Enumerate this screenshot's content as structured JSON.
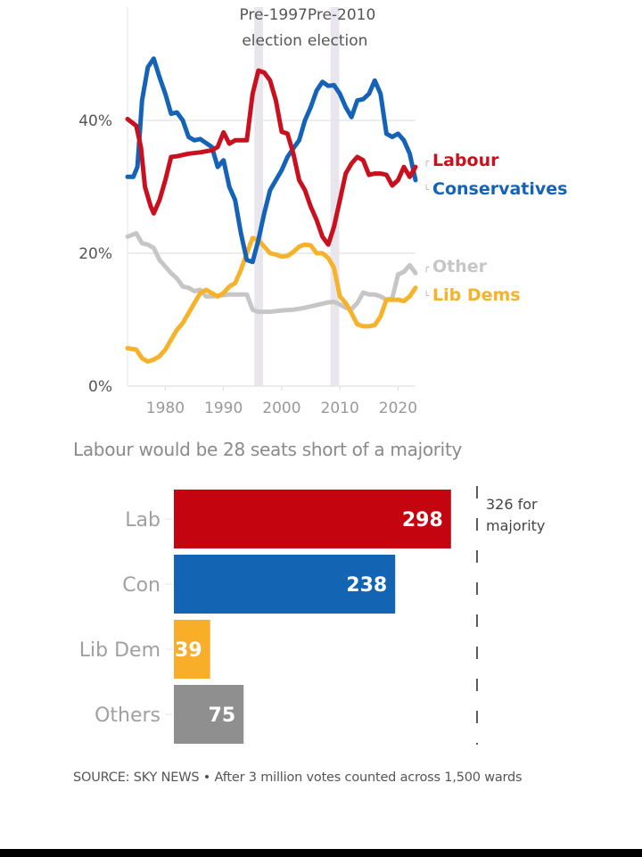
{
  "chart_data": [
    {
      "type": "line",
      "title": "",
      "xlabel": "",
      "ylabel": "",
      "xlim": [
        1973.5,
        2023
      ],
      "ylim": [
        0,
        50
      ],
      "x_ticks": [
        1980,
        1990,
        2000,
        2010,
        2020
      ],
      "x_tick_labels": [
        "1980",
        "1990",
        "2000",
        "2010",
        "2020"
      ],
      "y_ticks": [
        0,
        20,
        40
      ],
      "y_tick_labels": [
        "0%",
        "20%",
        "40%"
      ],
      "grid": true,
      "legend": "right",
      "annotations": [
        {
          "label_line1": "Pre-1997",
          "label_line2": "election",
          "x_start": 1995.3,
          "x_end": 1996.8
        },
        {
          "label_line1": "Pre-2010",
          "label_line2": "election",
          "x_start": 2008.4,
          "x_end": 2009.9
        }
      ],
      "series": [
        {
          "name": "Labour",
          "color": "#c8101e",
          "x": [
            1973.5,
            1975,
            1975.8,
            1976.5,
            1977.5,
            1978,
            1979,
            1980,
            1981,
            1982,
            1984,
            1986,
            1988,
            1989,
            1990,
            1991,
            1992,
            1994,
            1995,
            1996,
            1997,
            1998,
            1999,
            2000,
            2001,
            2002,
            2003,
            2004,
            2005,
            2006,
            2007,
            2008,
            2009,
            2010,
            2011,
            2012,
            2013,
            2014,
            2015,
            2016,
            2017,
            2018,
            2019,
            2020,
            2021,
            2022,
            2023
          ],
          "y": [
            40.2,
            39.2,
            36,
            30,
            27,
            26,
            28,
            31,
            34.5,
            34.6,
            35,
            35.2,
            35.5,
            36,
            38.2,
            36.5,
            37,
            37,
            44,
            47.5,
            47.2,
            46,
            43,
            38.3,
            38,
            35,
            31,
            29.5,
            27,
            25,
            22.5,
            21.3,
            24,
            28,
            32,
            33.5,
            34.5,
            34,
            31.8,
            32,
            32,
            31.8,
            30.2,
            31,
            33,
            31.5,
            33
          ]
        },
        {
          "name": "Conservatives",
          "color": "#1563b6",
          "x": [
            1973.5,
            1974.5,
            1975.2,
            1976,
            1977,
            1978,
            1979,
            1980,
            1981,
            1982,
            1983,
            1984,
            1985,
            1986,
            1988,
            1989,
            1990,
            1991,
            1992,
            1993,
            1994,
            1995,
            1996,
            1997,
            1998,
            1999,
            2000,
            2001,
            2002,
            2003,
            2004,
            2005,
            2006,
            2007,
            2008,
            2009,
            2010,
            2011,
            2012,
            2013,
            2014,
            2015,
            2016,
            2017,
            2018,
            2019,
            2020,
            2021,
            2022,
            2023
          ],
          "y": [
            31.5,
            31.5,
            33,
            43,
            48,
            49.3,
            46.5,
            44,
            41,
            41.2,
            40,
            37.5,
            37,
            37.2,
            36,
            33,
            34,
            30,
            28,
            23,
            19,
            18.7,
            22,
            26,
            29.5,
            31,
            32.5,
            34.5,
            35.8,
            37,
            40,
            42,
            44.5,
            45.8,
            45.2,
            45.3,
            44,
            42,
            40.5,
            43,
            43.2,
            44,
            46,
            44,
            38,
            37.5,
            38,
            37,
            35,
            31
          ]
        },
        {
          "name": "Other",
          "color": "#c6c6c6",
          "x": [
            1973.5,
            1975,
            1976,
            1977,
            1978,
            1979,
            1980,
            1981,
            1982,
            1983,
            1984,
            1985,
            1986,
            1987,
            1988,
            1990,
            1991,
            1992,
            1993,
            1994,
            1995,
            1996,
            1998,
            2000,
            2002,
            2004,
            2006,
            2008,
            2009,
            2010,
            2011,
            2012,
            2013,
            2014,
            2015,
            2016,
            2017,
            2018,
            2019,
            2020,
            2021,
            2022,
            2023
          ],
          "y": [
            22.5,
            23,
            21.5,
            21.3,
            20.8,
            19,
            18,
            17,
            16.2,
            15,
            14.8,
            14.3,
            14.5,
            13.5,
            13.5,
            13.7,
            13.8,
            13.8,
            13.8,
            13.8,
            11.5,
            11.2,
            11.2,
            11.4,
            11.5,
            11.8,
            12.2,
            12.6,
            12.7,
            12.3,
            11.8,
            11.6,
            12.5,
            14.1,
            13.8,
            13.8,
            13.5,
            13,
            13.2,
            16.8,
            17.2,
            18.2,
            17
          ]
        },
        {
          "name": "Lib Dems",
          "color": "#f6b22a",
          "x": [
            1973.5,
            1975,
            1976,
            1977,
            1978,
            1979,
            1980,
            1981,
            1982,
            1983,
            1984,
            1985,
            1986,
            1987,
            1988,
            1989,
            1990,
            1991,
            1992,
            1993,
            1994,
            1995,
            1996,
            1997,
            1998,
            1999,
            2000,
            2001,
            2002,
            2003,
            2004,
            2005,
            2006,
            2007,
            2008,
            2009,
            2010,
            2011,
            2012,
            2013,
            2014,
            2015,
            2016,
            2017,
            2018,
            2019,
            2020,
            2021,
            2022,
            2023
          ],
          "y": [
            5.7,
            5.5,
            4.2,
            3.7,
            4,
            4.5,
            5.5,
            7,
            8.5,
            9.5,
            11,
            12.5,
            14,
            14.5,
            14,
            13.5,
            14,
            15,
            15.5,
            17.5,
            20,
            22.3,
            22,
            21,
            20,
            19.8,
            19.5,
            19.6,
            20.2,
            21,
            21.3,
            21.2,
            20,
            20,
            19.3,
            17.8,
            13.5,
            12.5,
            11,
            9.3,
            9,
            9,
            9.2,
            10.5,
            13,
            13,
            13,
            12.8,
            13.5,
            14.8
          ]
        }
      ]
    },
    {
      "type": "bar",
      "orientation": "horizontal",
      "title": "Labour would be 28 seats short of a majority",
      "categories": [
        "Lab",
        "Con",
        "Lib Dem",
        "Others"
      ],
      "values": [
        298,
        238,
        39,
        75
      ],
      "colors": [
        "#c4040f",
        "#1464b4",
        "#f9ae2a",
        "#8f8f8f"
      ],
      "value_labels": [
        "298",
        "238",
        "39",
        "75"
      ],
      "xlim": [
        0,
        326
      ],
      "reference_line": {
        "value": 326,
        "label_line1": "326 for",
        "label_line2": "majority"
      }
    }
  ],
  "footer": {
    "source": "SOURCE: SKY NEWS • After 3 million votes counted across 1,500 wards"
  }
}
